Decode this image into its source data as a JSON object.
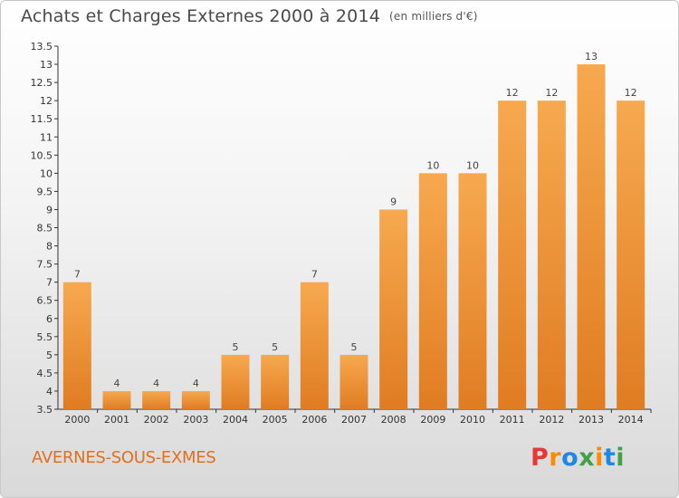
{
  "title": {
    "main": "Achats et Charges Externes 2000 à 2014",
    "unit": "(en milliers d'€)"
  },
  "footer": {
    "commune": "AVERNES-SOUS-EXMES",
    "logo_text": "Proxiti"
  },
  "colors": {
    "bar_top": "#f7a94f",
    "bar_bottom": "#e07c22",
    "axis": "#333333",
    "grid": "#dcdcdc",
    "commune_text": "#e07020",
    "logo_letters": [
      "#e53935",
      "#fb8c00",
      "#1e88e5",
      "#43a047",
      "#fb8c00",
      "#1e88e5",
      "#43a047"
    ]
  },
  "chart_data": {
    "type": "bar",
    "title": "Achats et Charges Externes 2000 à 2014",
    "subtitle": "(en milliers d'€)",
    "xlabel": "",
    "ylabel": "",
    "categories": [
      "2000",
      "2001",
      "2002",
      "2003",
      "2004",
      "2005",
      "2006",
      "2007",
      "2008",
      "2009",
      "2010",
      "2011",
      "2012",
      "2013",
      "2014"
    ],
    "values": [
      7,
      4,
      4,
      4,
      5,
      5,
      7,
      5,
      9,
      10,
      10,
      12,
      12,
      13,
      12
    ],
    "data_labels": [
      "7",
      "4",
      "4",
      "4",
      "5",
      "5",
      "7",
      "5",
      "9",
      "10",
      "10",
      "12",
      "12",
      "13",
      "12"
    ],
    "ylim": [
      3.5,
      13.5
    ],
    "yticks": [
      "3.5",
      "4",
      "4.5",
      "5",
      "5.5",
      "6",
      "6.5",
      "7",
      "7.5",
      "8",
      "8.5",
      "9",
      "9.5",
      "10",
      "10.5",
      "11",
      "11.5",
      "12",
      "12.5",
      "13",
      "13.5"
    ],
    "grid": false,
    "legend": "none"
  }
}
